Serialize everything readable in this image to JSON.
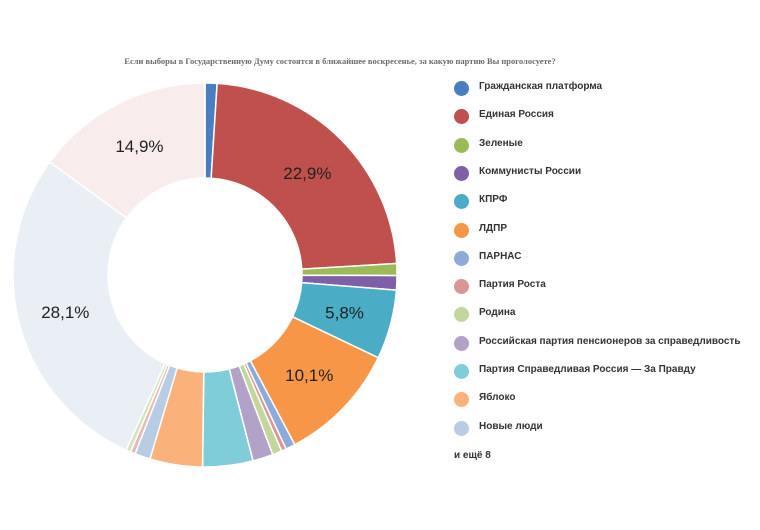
{
  "chart_data": {
    "type": "pie",
    "donut": true,
    "title": "Если выборы в Государственную Думу состоятся в ближайшее воскресенье, за какую партию Вы проголосуете?",
    "slices": [
      {
        "name": "Гражданская платформа",
        "value": 1.0,
        "color": "#4a7ec1",
        "label": ""
      },
      {
        "name": "Единая Россия",
        "value": 22.9,
        "color": "#c0504d",
        "label": "22,9%"
      },
      {
        "name": "Зеленые",
        "value": 1.0,
        "color": "#9bbb59",
        "label": ""
      },
      {
        "name": "Коммунисты России",
        "value": 1.2,
        "color": "#7f5fa8",
        "label": ""
      },
      {
        "name": "КПРФ",
        "value": 5.8,
        "color": "#4bacc6",
        "label": "5,8%"
      },
      {
        "name": "ЛДПР",
        "value": 10.1,
        "color": "#f79646",
        "label": "10,1%"
      },
      {
        "name": "ПАРНАС",
        "value": 0.8,
        "color": "#8eaadb",
        "label": ""
      },
      {
        "name": "Партия Роста",
        "value": 0.4,
        "color": "#d99694",
        "label": ""
      },
      {
        "name": "Родина",
        "value": 0.8,
        "color": "#c3d69b",
        "label": ""
      },
      {
        "name": "Российская партия пенсионеров за справедливость",
        "value": 1.7,
        "color": "#b3a2c7",
        "label": ""
      },
      {
        "name": "Партия Справедливая Россия — За Правду",
        "value": 4.2,
        "color": "#7fcdd9",
        "label": ""
      },
      {
        "name": "Яблоко",
        "value": 4.4,
        "color": "#fab27a",
        "label": ""
      },
      {
        "name": "Новые люди",
        "value": 1.3,
        "color": "#b8cce4",
        "label": ""
      },
      {
        "name": "",
        "value": 0.4,
        "color": "#e6b9b8",
        "label": ""
      },
      {
        "name": "",
        "value": 0.4,
        "color": "#d6e3bc",
        "label": ""
      },
      {
        "name": "",
        "value": 28.1,
        "color": "#eaeef5",
        "label": "28,1%"
      },
      {
        "name": "",
        "value": 14.9,
        "color": "#f9ecec",
        "label": "14,9%"
      }
    ],
    "legend": {
      "placement": "right",
      "more_text": "и ещё 8"
    }
  }
}
